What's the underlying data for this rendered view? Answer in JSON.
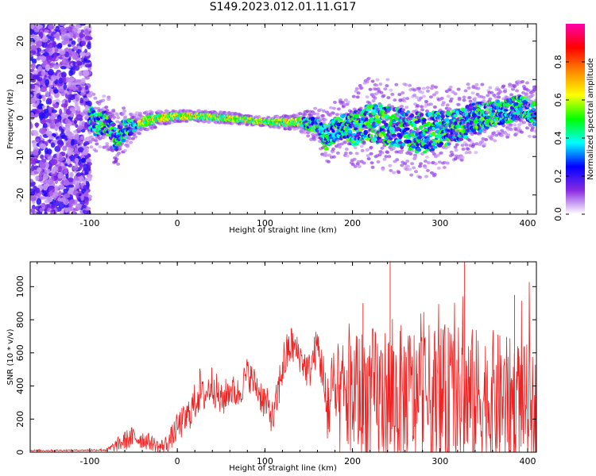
{
  "title": "S149.2023.012.01.11.G17",
  "chart_data": [
    {
      "type": "heatmap",
      "xlabel": "Height of straight line (km)",
      "ylabel": "Frequency (Hz)",
      "xlim": [
        -168,
        410
      ],
      "ylim": [
        -25,
        24.5
      ],
      "xticks": [
        -100,
        0,
        100,
        200,
        300,
        400
      ],
      "yticks": [
        -20,
        -10,
        0,
        10,
        20
      ],
      "colorbar": {
        "label": "Normalized spectral amplitude",
        "range": [
          0,
          1
        ],
        "ticks": [
          0.0,
          0.2,
          0.4,
          0.6,
          0.8
        ],
        "colors": [
          "#ffffff",
          "#8a2be2",
          "#0000ff",
          "#00ffff",
          "#00ff00",
          "#ffff00",
          "#ff8800",
          "#ff0000",
          "#ff00aa"
        ]
      },
      "noise_region_x": [
        -168,
        -100
      ],
      "center_track": {
        "x": [
          -100,
          -90,
          -80,
          -75,
          -70,
          -60,
          -50,
          -40,
          -30,
          -20,
          0,
          20,
          40,
          60,
          80,
          100,
          120,
          140,
          150,
          160,
          170,
          180,
          190,
          200,
          220,
          240,
          260,
          280,
          300,
          320,
          340,
          360,
          380,
          395,
          410
        ],
        "y": [
          0,
          -2,
          -1,
          -3,
          -6,
          -3,
          -2,
          -1,
          -0.5,
          0,
          0.5,
          0.5,
          0.3,
          0,
          -0.5,
          -1,
          -1,
          -1,
          -1.5,
          -2,
          -5,
          -3,
          -2,
          -3,
          -1,
          -2,
          -3,
          -4,
          -3,
          -2,
          0,
          1,
          2,
          3,
          1
        ],
        "spread": [
          3,
          3,
          3,
          3,
          3,
          2.5,
          1.5,
          1,
          1,
          0.8,
          0.6,
          0.6,
          0.6,
          0.6,
          0.5,
          0.5,
          0.7,
          1,
          1.5,
          2,
          3,
          3,
          3,
          4,
          5,
          5,
          5,
          5,
          5,
          4,
          4,
          3,
          3,
          3,
          3
        ]
      }
    },
    {
      "type": "line",
      "xlabel": "Height of straight line (km)",
      "ylabel": "SNR (10 * v/v)",
      "xlim": [
        -168,
        410
      ],
      "ylim": [
        0,
        1150
      ],
      "xticks": [
        -100,
        0,
        100,
        200,
        300,
        400
      ],
      "yticks": [
        0,
        200,
        400,
        600,
        800,
        1000
      ],
      "color": "#ee2222",
      "envelope": {
        "x": [
          -168,
          -100,
          -80,
          -70,
          -60,
          -50,
          -40,
          -30,
          -20,
          -10,
          0,
          10,
          20,
          25,
          30,
          40,
          50,
          60,
          70,
          80,
          90,
          100,
          110,
          120,
          130,
          140,
          150,
          160,
          165,
          170,
          200,
          240,
          280,
          320,
          360,
          400,
          410
        ],
        "base": [
          10,
          12,
          15,
          40,
          70,
          90,
          80,
          60,
          30,
          60,
          150,
          200,
          300,
          380,
          330,
          420,
          300,
          380,
          350,
          480,
          400,
          300,
          200,
          520,
          650,
          580,
          480,
          650,
          500,
          280,
          350,
          320,
          330,
          320,
          320,
          300,
          280
        ],
        "amp": [
          5,
          5,
          10,
          40,
          60,
          70,
          60,
          50,
          40,
          60,
          90,
          100,
          120,
          150,
          100,
          120,
          110,
          100,
          100,
          100,
          100,
          120,
          100,
          150,
          120,
          100,
          120,
          120,
          150,
          300,
          400,
          450,
          450,
          450,
          420,
          350,
          300
        ]
      },
      "annotation_peaks": [
        {
          "x": 243,
          "y": 1150
        },
        {
          "x": 328,
          "y": 1150
        },
        {
          "x": 212,
          "y": 900
        },
        {
          "x": 385,
          "y": 950
        }
      ]
    }
  ]
}
